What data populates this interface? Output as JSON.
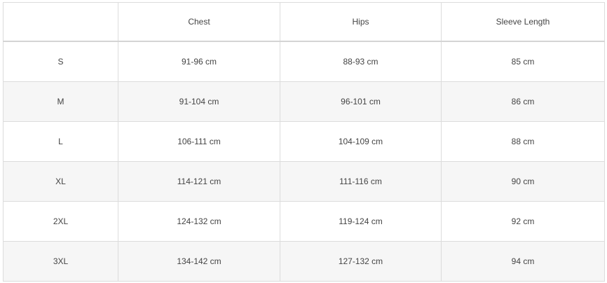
{
  "headers": [
    "",
    "Chest",
    "Hips",
    "Sleeve Length"
  ],
  "rows": [
    {
      "size": "S",
      "chest": "91-96 cm",
      "hips": "88-93 cm",
      "sleeve": "85 cm"
    },
    {
      "size": "M",
      "chest": "91-104 cm",
      "hips": "96-101 cm",
      "sleeve": "86 cm"
    },
    {
      "size": "L",
      "chest": "106-111 cm",
      "hips": "104-109 cm",
      "sleeve": "88 cm"
    },
    {
      "size": "XL",
      "chest": "114-121 cm",
      "hips": "111-116 cm",
      "sleeve": "90 cm"
    },
    {
      "size": "2XL",
      "chest": "124-132 cm",
      "hips": "119-124 cm",
      "sleeve": "92 cm"
    },
    {
      "size": "3XL",
      "chest": "134-142 cm",
      "hips": "127-132 cm",
      "sleeve": "94 cm"
    }
  ]
}
